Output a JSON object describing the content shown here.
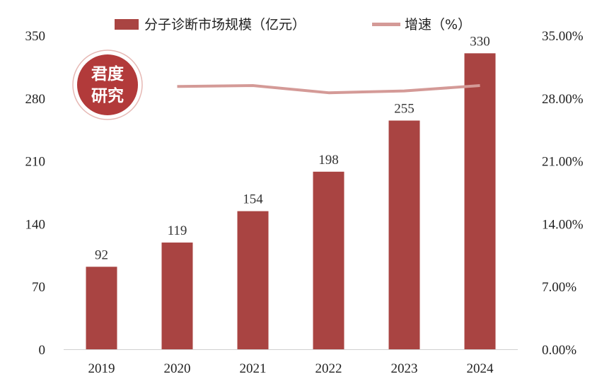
{
  "chart_data": {
    "type": "bar",
    "categories": [
      "2019",
      "2020",
      "2021",
      "2022",
      "2023",
      "2024"
    ],
    "series": [
      {
        "name": "分子诊断市场规模（亿元）",
        "type": "bar",
        "axis": "left",
        "values": [
          92,
          119,
          154,
          198,
          255,
          330
        ],
        "color": "#A94442"
      },
      {
        "name": "增速（%）",
        "type": "line",
        "axis": "right",
        "values": [
          null,
          29.3,
          29.4,
          28.6,
          28.8,
          29.4
        ],
        "color": "#D49A97"
      }
    ],
    "ylim_left": [
      0,
      350
    ],
    "ylim_right": [
      0,
      35
    ],
    "left_ticks": [
      "0",
      "70",
      "140",
      "210",
      "280",
      "350"
    ],
    "right_ticks": [
      "0.00%",
      "7.00%",
      "14.00%",
      "21.00%",
      "28.00%",
      "35.00%"
    ],
    "data_labels": [
      "92",
      "119",
      "154",
      "198",
      "255",
      "330"
    ],
    "grid": false,
    "legend_position": "top"
  },
  "stamp": {
    "text": "君度研究",
    "line1": "君度",
    "line2": "研究",
    "color": "#B23A3A"
  }
}
